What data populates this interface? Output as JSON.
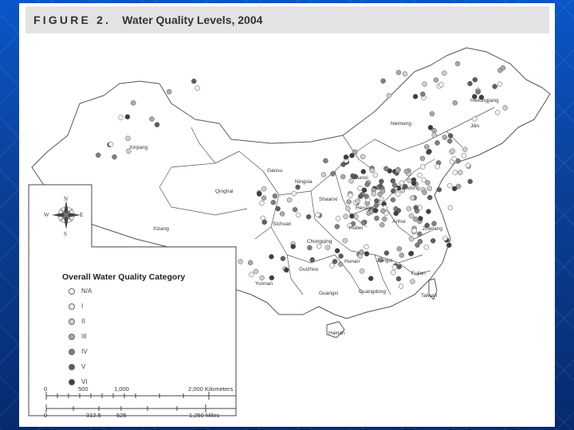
{
  "figure": {
    "label": "FIGURE 2.",
    "title": "Water Quality Levels, 2004"
  },
  "legend": {
    "title": "Overall Water Quality Category",
    "items": [
      {
        "label": "N/A",
        "color": "#ffffff"
      },
      {
        "label": "I",
        "color": "#f2f2f2"
      },
      {
        "label": "II",
        "color": "#cfcfcf"
      },
      {
        "label": "III",
        "color": "#aaaaaa"
      },
      {
        "label": "IV",
        "color": "#7f7f7f"
      },
      {
        "label": "V",
        "color": "#5e5e5e"
      },
      {
        "label": "VI",
        "color": "#3e3e3e"
      }
    ]
  },
  "scale": {
    "km_ticks": [
      "0",
      "500",
      "1,000",
      "2,000 Kilometers"
    ],
    "mile_ticks": [
      "0",
      "312.5",
      "625",
      "1,250 Miles"
    ]
  },
  "compass": {
    "n": "N",
    "s": "S",
    "e": "E",
    "w": "W"
  },
  "places": [
    {
      "name": "Heilongjiang",
      "key": "heilongjiang"
    },
    {
      "name": "Jilin",
      "key": "jilin"
    },
    {
      "name": "Neimeng",
      "key": "neimeng"
    },
    {
      "name": "Xinjiang",
      "key": "xinjiang"
    },
    {
      "name": "Gansu",
      "key": "gansu"
    },
    {
      "name": "Ningxia",
      "key": "ningxia"
    },
    {
      "name": "Shanxi",
      "key": "shanxi"
    },
    {
      "name": "Shandong",
      "key": "shandong"
    },
    {
      "name": "Qinghai",
      "key": "qinghai"
    },
    {
      "name": "Shaanxi",
      "key": "shaanxi"
    },
    {
      "name": "Henan",
      "key": "henan"
    },
    {
      "name": "Anhui",
      "key": "anhui"
    },
    {
      "name": "Xizang",
      "key": "xizang"
    },
    {
      "name": "Sichuan",
      "key": "sichuan"
    },
    {
      "name": "Hubei",
      "key": "hubei"
    },
    {
      "name": "Zhejiang",
      "key": "zhejiang"
    },
    {
      "name": "Chongqing",
      "key": "chongqing"
    },
    {
      "name": "Hunan",
      "key": "hunan"
    },
    {
      "name": "Jiangxi",
      "key": "jiangxi"
    },
    {
      "name": "Guizhou",
      "key": "guizhou"
    },
    {
      "name": "Fujian",
      "key": "fujian"
    },
    {
      "name": "Yunnan",
      "key": "yunnan"
    },
    {
      "name": "Guangxi",
      "key": "guangxi"
    },
    {
      "name": "Guangdong",
      "key": "guangdong"
    },
    {
      "name": "Taiwan",
      "key": "taiwan"
    },
    {
      "name": "Hainan",
      "key": "hainan"
    }
  ]
}
